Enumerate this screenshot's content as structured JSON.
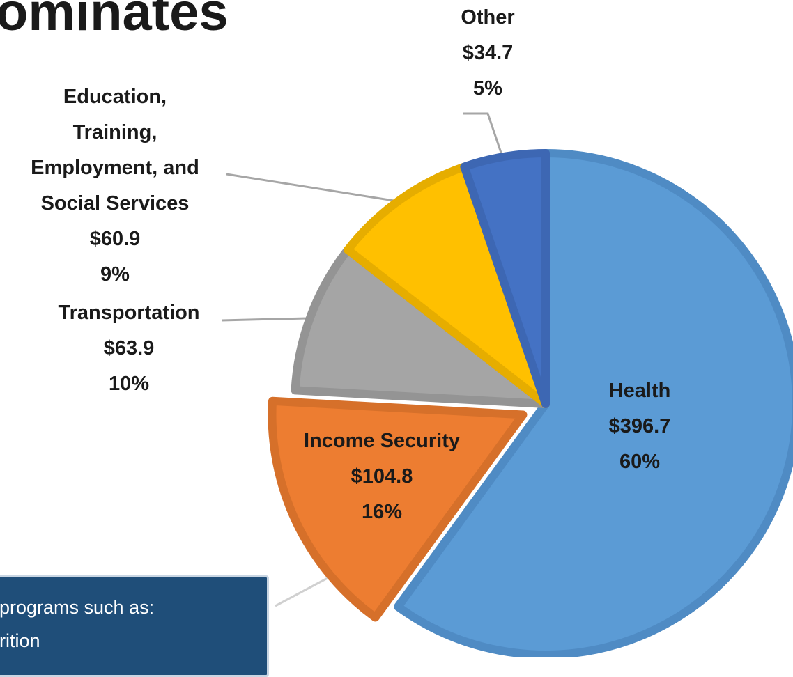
{
  "title": "ominates",
  "chart_data": {
    "type": "pie",
    "categories": [
      "Health",
      "Income Security",
      "Transportation",
      "Education,\nTraining,\nEmployment, and\nSocial Services",
      "Other"
    ],
    "values": [
      396.7,
      104.8,
      63.9,
      60.9,
      34.7
    ],
    "value_labels": [
      "$396.7",
      "$104.8",
      "$63.9",
      "$60.9",
      "$34.7"
    ],
    "percents": [
      60,
      16,
      10,
      9,
      5
    ],
    "percent_labels": [
      "60%",
      "16%",
      "10%",
      "9%",
      "5%"
    ],
    "colors": [
      "#5b9bd5",
      "#ed7d31",
      "#a5a5a5",
      "#ffc000",
      "#4472c4"
    ],
    "border_colors": [
      "#4f8bc4",
      "#d6702a",
      "#949494",
      "#e6ad00",
      "#3d67b3"
    ],
    "exploded": [
      "Income Security"
    ]
  },
  "annotation": {
    "lines": [
      "programs such as:",
      "rition"
    ]
  }
}
